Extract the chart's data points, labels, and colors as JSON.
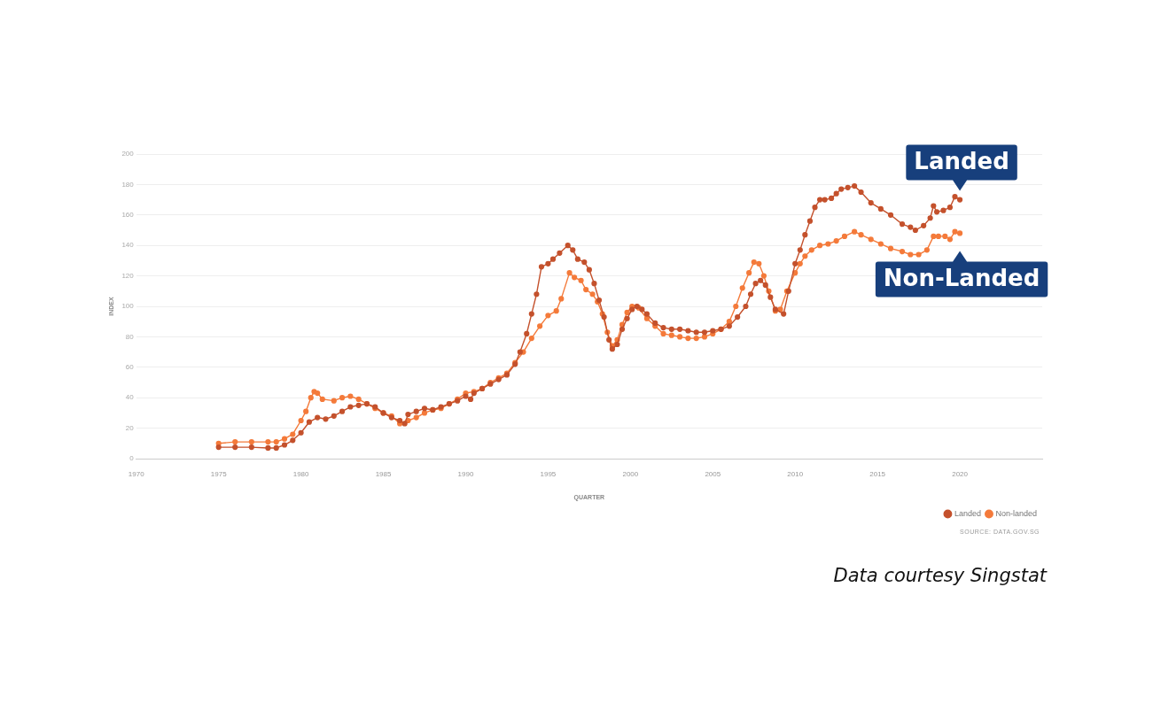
{
  "chart_data": {
    "type": "line",
    "xlabel": "QUARTER",
    "ylabel": "INDEX",
    "xlim": [
      1970,
      2025
    ],
    "xticks": [
      1970,
      1975,
      1980,
      1985,
      1990,
      1995,
      2000,
      2005,
      2010,
      2015,
      2020
    ],
    "ylim": [
      0,
      200
    ],
    "yticks": [
      0,
      20,
      40,
      60,
      80,
      100,
      120,
      140,
      160,
      180,
      200
    ],
    "grid": "y",
    "legend": "bottom right",
    "marker": "circle",
    "line_style": "solid",
    "series": [
      {
        "name": "Landed",
        "color": "#c4512c",
        "x": [
          1975,
          1976,
          1977,
          1978,
          1978.5,
          1979,
          1979.5,
          1980,
          1980.5,
          1981,
          1981.5,
          1982,
          1982.5,
          1983,
          1983.5,
          1984,
          1984.5,
          1985,
          1985.5,
          1986,
          1986.3,
          1986.5,
          1987,
          1987.5,
          1988,
          1988.5,
          1989,
          1989.5,
          1990,
          1990.3,
          1990.5,
          1991,
          1991.5,
          1992,
          1992.5,
          1993,
          1993.3,
          1993.7,
          1994,
          1994.3,
          1994.6,
          1995,
          1995.3,
          1995.7,
          1996.2,
          1996.5,
          1996.8,
          1997.2,
          1997.5,
          1997.8,
          1998.1,
          1998.4,
          1998.7,
          1998.9,
          1999.2,
          1999.5,
          1999.8,
          2000.1,
          2000.4,
          2000.7,
          2001,
          2001.5,
          2002,
          2002.5,
          2003,
          2003.5,
          2004,
          2004.5,
          2005,
          2005.5,
          2006,
          2006.5,
          2007,
          2007.3,
          2007.6,
          2007.9,
          2008.2,
          2008.5,
          2008.8,
          2009.3,
          2009.6,
          2010,
          2010.3,
          2010.6,
          2010.9,
          2011.2,
          2011.5,
          2011.8,
          2012.2,
          2012.5,
          2012.8,
          2013.2,
          2013.6,
          2014,
          2014.6,
          2015.2,
          2015.8,
          2016.5,
          2017,
          2017.3,
          2017.8,
          2018.2,
          2018.4,
          2018.6,
          2019,
          2019.4,
          2019.7,
          2020
        ],
        "values": [
          7.5,
          7.5,
          7.5,
          7,
          7,
          9,
          12,
          17,
          24,
          27,
          26,
          28,
          31,
          34,
          35,
          36,
          34,
          30,
          27,
          25,
          23,
          29,
          31,
          33,
          32,
          34,
          36,
          38,
          41,
          39,
          43,
          46,
          49,
          52,
          55,
          62,
          70,
          82,
          95,
          108,
          126,
          128,
          131,
          135,
          140,
          137,
          131,
          129,
          124,
          115,
          104,
          93,
          78,
          72,
          75,
          85,
          92,
          98,
          100,
          98,
          95,
          89,
          86,
          85,
          85,
          84,
          83,
          83,
          84,
          85,
          87,
          93,
          100,
          108,
          115,
          117,
          114,
          106,
          98,
          95,
          110,
          128,
          137,
          147,
          156,
          165,
          170,
          170,
          171,
          174,
          177,
          178,
          179,
          175,
          168,
          164,
          160,
          154,
          152,
          150,
          153,
          158,
          166,
          162,
          163,
          165,
          172,
          170
        ]
      },
      {
        "name": "Non-landed",
        "color": "#f47a3a",
        "x": [
          1975,
          1976,
          1977,
          1978,
          1978.5,
          1979,
          1979.5,
          1980,
          1980.3,
          1980.6,
          1980.8,
          1981,
          1981.3,
          1982,
          1982.5,
          1983,
          1983.5,
          1984,
          1984.5,
          1985,
          1985.5,
          1986,
          1986.5,
          1987,
          1987.5,
          1988,
          1988.5,
          1989,
          1989.5,
          1990,
          1990.5,
          1991,
          1991.5,
          1992,
          1992.5,
          1993,
          1993.5,
          1994,
          1994.5,
          1995,
          1995.5,
          1995.8,
          1996.3,
          1996.6,
          1997,
          1997.3,
          1997.7,
          1998,
          1998.3,
          1998.6,
          1998.9,
          1999.2,
          1999.5,
          1999.8,
          2000.1,
          2000.5,
          2001,
          2001.5,
          2002,
          2002.5,
          2003,
          2003.5,
          2004,
          2004.5,
          2005,
          2005.5,
          2006,
          2006.4,
          2006.8,
          2007.2,
          2007.5,
          2007.8,
          2008.1,
          2008.4,
          2008.8,
          2009.1,
          2009.5,
          2010,
          2010.3,
          2010.6,
          2011,
          2011.5,
          2012,
          2012.5,
          2013,
          2013.6,
          2014,
          2014.6,
          2015.2,
          2015.8,
          2016.5,
          2017,
          2017.5,
          2018,
          2018.4,
          2018.7,
          2019.1,
          2019.4,
          2019.7,
          2020
        ],
        "values": [
          10,
          11,
          11,
          11,
          11,
          13,
          16,
          25,
          31,
          40,
          44,
          43,
          39,
          38,
          40,
          41,
          39,
          36,
          33,
          30,
          28,
          23,
          25,
          27,
          30,
          32,
          33,
          36,
          39,
          43,
          44,
          46,
          50,
          53,
          56,
          63,
          70,
          79,
          87,
          94,
          97,
          105,
          122,
          119,
          117,
          111,
          108,
          103,
          95,
          83,
          74,
          78,
          88,
          96,
          100,
          99,
          92,
          87,
          82,
          81,
          80,
          79,
          79,
          80,
          82,
          85,
          90,
          100,
          112,
          122,
          129,
          128,
          120,
          110,
          97,
          98,
          110,
          122,
          128,
          133,
          137,
          140,
          141,
          143,
          146,
          149,
          147,
          144,
          141,
          138,
          136,
          134,
          134,
          137,
          146,
          146,
          146,
          144,
          149,
          148
        ]
      }
    ],
    "annotations": [
      {
        "text": "Landed",
        "x": 2020,
        "y": 170
      },
      {
        "text": "Non-Landed",
        "x": 2020,
        "y": 148
      },
      "SOURCE: DATA.GOV.SG",
      "Data courtesy Singstat"
    ]
  }
}
